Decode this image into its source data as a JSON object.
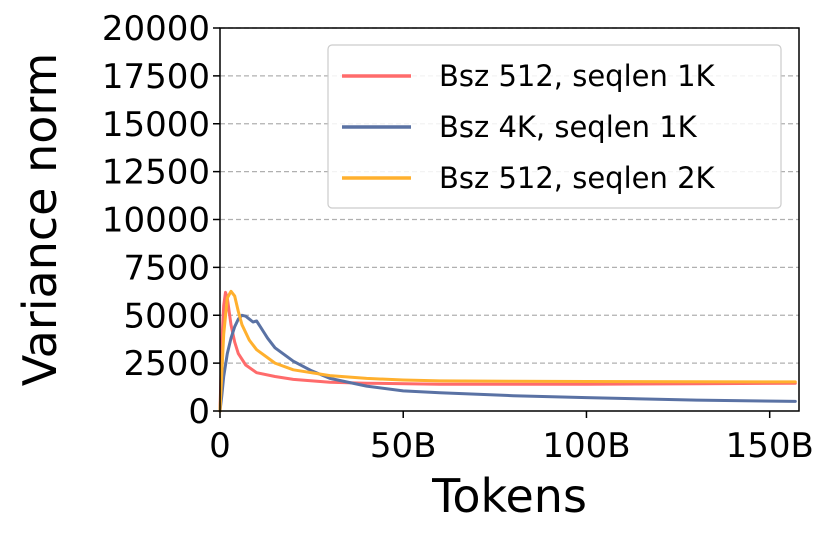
{
  "chart_data": {
    "type": "line",
    "title": "",
    "xlabel": "Tokens",
    "ylabel": "Variance norm",
    "xlim": [
      0,
      158
    ],
    "ylim": [
      0,
      20000
    ],
    "x_ticks": [
      0,
      50,
      100,
      150
    ],
    "x_tick_labels": [
      "0",
      "50B",
      "100B",
      "150B"
    ],
    "y_ticks": [
      0,
      2500,
      5000,
      7500,
      10000,
      12500,
      15000,
      17500,
      20000
    ],
    "y_tick_labels": [
      "0",
      "2500",
      "5000",
      "7500",
      "10000",
      "12500",
      "15000",
      "17500",
      "20000"
    ],
    "grid": "horizontal dashed",
    "legend_position": "top-right",
    "series": [
      {
        "name": "Bsz 512, seqlen 1K",
        "color": "#ff6b6b",
        "x": [
          0,
          0.5,
          1,
          1.5,
          2,
          3,
          4,
          5,
          7,
          10,
          15,
          20,
          30,
          40,
          60,
          80,
          100,
          130,
          157
        ],
        "y": [
          0,
          3500,
          5500,
          6200,
          5900,
          4500,
          3600,
          3000,
          2400,
          2000,
          1800,
          1650,
          1500,
          1450,
          1400,
          1400,
          1400,
          1420,
          1450
        ]
      },
      {
        "name": "Bsz 4K, seqlen 1K",
        "color": "#5a72a4",
        "x": [
          0,
          0.5,
          1,
          2,
          3,
          4,
          5,
          6,
          7,
          8,
          9,
          10,
          11,
          12,
          13,
          15,
          20,
          25,
          30,
          40,
          50,
          60,
          80,
          100,
          130,
          157
        ],
        "y": [
          0,
          800,
          1800,
          3000,
          3800,
          4400,
          4800,
          5000,
          4950,
          4800,
          4650,
          4700,
          4400,
          4100,
          3800,
          3300,
          2600,
          2100,
          1700,
          1300,
          1050,
          950,
          800,
          700,
          570,
          500
        ]
      },
      {
        "name": "Bsz 512, seqlen 2K",
        "color": "#ffb02e",
        "x": [
          0,
          1,
          2,
          3,
          4,
          5,
          6,
          8,
          10,
          15,
          20,
          30,
          40,
          50,
          60,
          80,
          100,
          130,
          157
        ],
        "y": [
          0,
          4000,
          5900,
          6250,
          6000,
          5200,
          4500,
          3700,
          3200,
          2500,
          2150,
          1850,
          1700,
          1620,
          1570,
          1550,
          1540,
          1530,
          1520
        ]
      }
    ]
  }
}
